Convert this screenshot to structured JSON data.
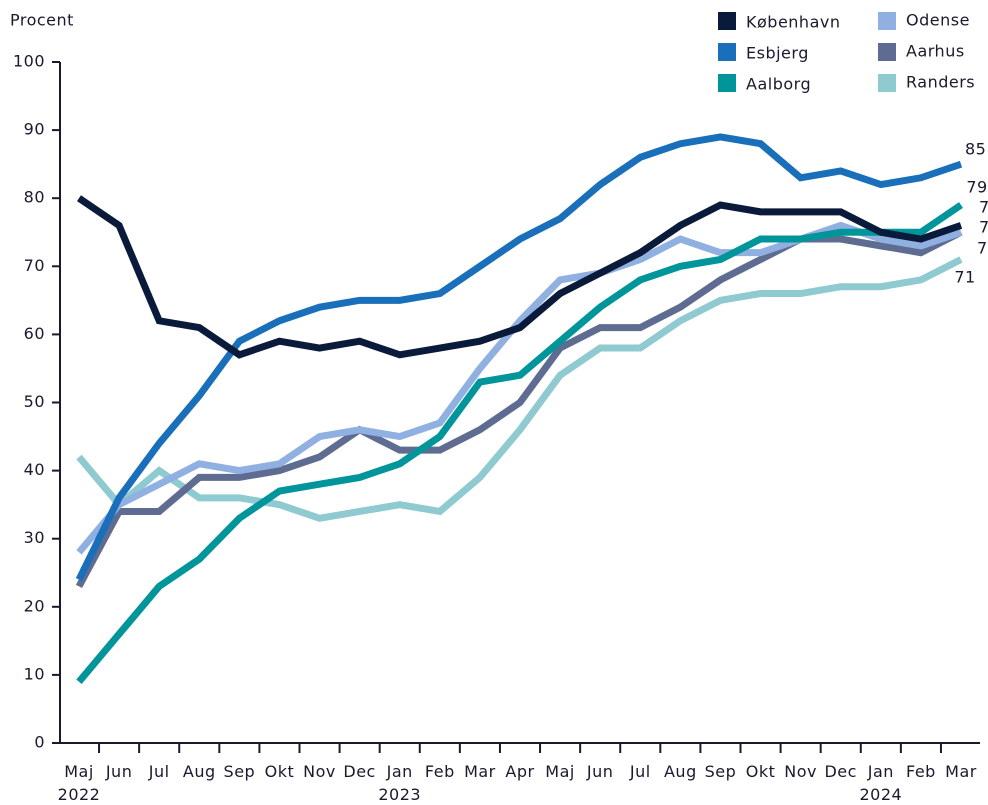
{
  "chart_data": {
    "type": "line",
    "y_label": "Procent",
    "categories": [
      "Maj\n2022",
      "Jun",
      "Jul",
      "Aug",
      "Sep",
      "Okt",
      "Nov",
      "Dec",
      "Jan\n2023",
      "Feb",
      "Mar",
      "Apr",
      "Maj",
      "Jun",
      "Jul",
      "Aug",
      "Sep",
      "Okt",
      "Nov",
      "Dec",
      "Jan\n2024",
      "Feb",
      "Mar"
    ],
    "ylim": [
      0,
      100
    ],
    "yticks": [
      0,
      10,
      20,
      30,
      40,
      50,
      60,
      70,
      80,
      90,
      100
    ],
    "grid": false,
    "legend": "top-right",
    "series": [
      {
        "name": "København",
        "color": "#0a1a3a",
        "values": [
          80,
          76,
          62,
          61,
          57,
          59,
          58,
          59,
          57,
          58,
          59,
          61,
          66,
          69,
          72,
          76,
          79,
          78,
          78,
          78,
          75,
          74,
          76
        ]
      },
      {
        "name": "Esbjerg",
        "color": "#1a6fba",
        "values": [
          24,
          36,
          44,
          51,
          59,
          62,
          64,
          65,
          65,
          66,
          70,
          74,
          77,
          82,
          86,
          88,
          89,
          88,
          83,
          84,
          82,
          83,
          85
        ]
      },
      {
        "name": "Aalborg",
        "color": "#00959a",
        "values": [
          9,
          16,
          23,
          27,
          33,
          37,
          38,
          39,
          41,
          45,
          53,
          54,
          59,
          64,
          68,
          70,
          71,
          74,
          74,
          75,
          75,
          75,
          79
        ]
      },
      {
        "name": "Odense",
        "color": "#8fb0e0",
        "values": [
          28,
          35,
          38,
          41,
          40,
          41,
          45,
          46,
          45,
          47,
          55,
          62,
          68,
          69,
          71,
          74,
          72,
          72,
          74,
          76,
          74,
          73,
          75
        ]
      },
      {
        "name": "Aarhus",
        "color": "#5f6c92",
        "values": [
          23,
          34,
          34,
          39,
          39,
          40,
          42,
          46,
          43,
          43,
          46,
          50,
          58,
          61,
          61,
          64,
          68,
          71,
          74,
          74,
          73,
          72,
          75
        ]
      },
      {
        "name": "Randers",
        "color": "#8ecad0",
        "values": [
          42,
          35,
          40,
          36,
          36,
          35,
          33,
          34,
          35,
          34,
          39,
          46,
          54,
          58,
          58,
          62,
          65,
          66,
          66,
          67,
          67,
          68,
          71
        ]
      }
    ]
  }
}
